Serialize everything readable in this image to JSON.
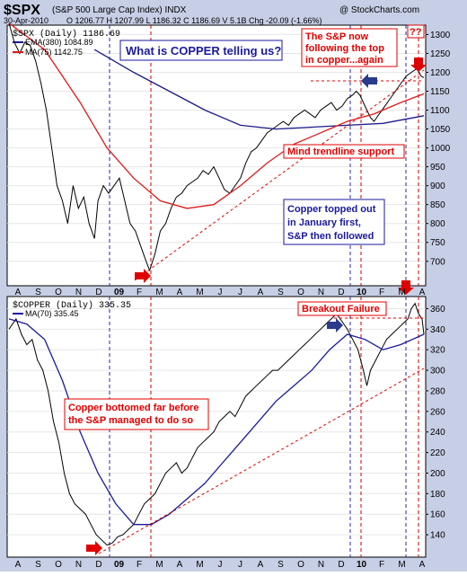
{
  "header": {
    "symbol": "$SPX",
    "name": "(S&P 500 Large Cap Index) INDX",
    "watermark": "@ StockCharts.com",
    "date": "30-Apr-2010",
    "quote": "O 1206.77  H 1207.99  L 1186.32  C 1186.69  V 5.1B  Chg -20.09 (-1.66%)"
  },
  "colors": {
    "background": "#c7cfe6",
    "panel": "#ffffff",
    "price": "#000000",
    "ema": "#1a1a8c",
    "ma_red": "#e01a1a",
    "ma_blue": "#1a1a9c",
    "annotation_red": "#e00000",
    "annotation_blue": "#1a1a9c",
    "arrow_blue": "#2a3a8c",
    "arrow_red": "#e00000",
    "vline_blue": "#2a2a9c",
    "vline_red": "#cc0000"
  },
  "panels": {
    "top": {
      "legend": {
        "series": "$SPX (Daily) 1186.69",
        "ema": "EMA(380) 1084.89",
        "ma": "MA(75) 1142.75"
      },
      "annotations": {
        "question": "What is COPPER telling us?",
        "sp_follow": "The S&P now\nfollowing the top\nin copper...again",
        "trendline": "Mind trendline support",
        "copper_top": "Copper topped out\nin January first,\nS&P then followed",
        "qq": "??"
      },
      "y_ticks": [
        "1300",
        "1250",
        "1200",
        "1150",
        "1100",
        "1050",
        "1000",
        "950",
        "900",
        "850",
        "800",
        "750",
        "700"
      ]
    },
    "bottom": {
      "legend": {
        "series": "$COPPER (Daily) 335.35",
        "ma": "MA(70) 335.45"
      },
      "annotations": {
        "breakout": "Breakout Failure",
        "bottomed": "Copper bottomed far before\nthe S&P managed to do so"
      },
      "y_ticks": [
        "360",
        "340",
        "320",
        "300",
        "280",
        "260",
        "240",
        "220",
        "200",
        "180",
        "160",
        "140"
      ]
    },
    "x_months": [
      "A",
      "S",
      "O",
      "N",
      "D",
      "09",
      "F",
      "M",
      "A",
      "M",
      "J",
      "J",
      "A",
      "S",
      "O",
      "N",
      "D",
      "10",
      "F",
      "M",
      "A"
    ]
  },
  "chart_data": [
    {
      "type": "line",
      "title": "$SPX (S&P 500 Large Cap Index) INDX",
      "ylim": [
        640,
        1320
      ],
      "series": [
        {
          "name": "$SPX (Daily)",
          "last": 1186.69,
          "points": [
            [
              0,
              1330
            ],
            [
              6,
              1280
            ],
            [
              12,
              1250
            ],
            [
              18,
              1280
            ],
            [
              24,
              1270
            ],
            [
              30,
              1230
            ],
            [
              36,
              1170
            ],
            [
              42,
              1100
            ],
            [
              48,
              1000
            ],
            [
              54,
              900
            ],
            [
              60,
              860
            ],
            [
              66,
              800
            ],
            [
              72,
              900
            ],
            [
              78,
              840
            ],
            [
              84,
              870
            ],
            [
              90,
              800
            ],
            [
              96,
              760
            ],
            [
              100,
              860
            ],
            [
              106,
              900
            ],
            [
              112,
              880
            ],
            [
              118,
              900
            ],
            [
              124,
              920
            ],
            [
              130,
              860
            ],
            [
              136,
              800
            ],
            [
              142,
              780
            ],
            [
              148,
              740
            ],
            [
              154,
              700
            ],
            [
              158,
              676
            ],
            [
              164,
              720
            ],
            [
              170,
              780
            ],
            [
              176,
              800
            ],
            [
              182,
              840
            ],
            [
              188,
              870
            ],
            [
              194,
              880
            ],
            [
              200,
              900
            ],
            [
              206,
              910
            ],
            [
              212,
              920
            ],
            [
              218,
              940
            ],
            [
              224,
              930
            ],
            [
              230,
              950
            ],
            [
              236,
              920
            ],
            [
              242,
              890
            ],
            [
              248,
              880
            ],
            [
              254,
              900
            ],
            [
              260,
              920
            ],
            [
              266,
              960
            ],
            [
              272,
              990
            ],
            [
              278,
              1000
            ],
            [
              284,
              1020
            ],
            [
              290,
              1040
            ],
            [
              296,
              1050
            ],
            [
              302,
              1060
            ],
            [
              308,
              1070
            ],
            [
              314,
              1060
            ],
            [
              320,
              1080
            ],
            [
              326,
              1090
            ],
            [
              332,
              1100
            ],
            [
              338,
              1090
            ],
            [
              344,
              1080
            ],
            [
              350,
              1100
            ],
            [
              356,
              1110
            ],
            [
              362,
              1120
            ],
            [
              368,
              1100
            ],
            [
              374,
              1110
            ],
            [
              380,
              1130
            ],
            [
              386,
              1140
            ],
            [
              390,
              1150
            ],
            [
              394,
              1140
            ],
            [
              398,
              1120
            ],
            [
              402,
              1100
            ],
            [
              406,
              1080
            ],
            [
              410,
              1070
            ],
            [
              416,
              1090
            ],
            [
              422,
              1110
            ],
            [
              428,
              1130
            ],
            [
              434,
              1150
            ],
            [
              440,
              1170
            ],
            [
              446,
              1190
            ],
            [
              452,
              1200
            ],
            [
              458,
              1210
            ],
            [
              463,
              1190
            ],
            [
              466,
              1186
            ]
          ]
        },
        {
          "name": "EMA(380)",
          "last": 1084.89,
          "points": [
            [
              96,
              1260
            ],
            [
              140,
              1200
            ],
            [
              180,
              1150
            ],
            [
              220,
              1100
            ],
            [
              260,
              1060
            ],
            [
              300,
              1050
            ],
            [
              340,
              1055
            ],
            [
              380,
              1060
            ],
            [
              420,
              1065
            ],
            [
              466,
              1085
            ]
          ]
        },
        {
          "name": "MA(75)",
          "last": 1142.75,
          "points": [
            [
              0,
              1330
            ],
            [
              40,
              1260
            ],
            [
              80,
              1120
            ],
            [
              110,
              1000
            ],
            [
              140,
              920
            ],
            [
              170,
              860
            ],
            [
              200,
              840
            ],
            [
              230,
              850
            ],
            [
              260,
              900
            ],
            [
              290,
              960
            ],
            [
              320,
              1010
            ],
            [
              350,
              1040
            ],
            [
              380,
              1070
            ],
            [
              410,
              1090
            ],
            [
              440,
              1120
            ],
            [
              466,
              1143
            ]
          ]
        }
      ]
    },
    {
      "type": "line",
      "title": "$COPPER (Daily)",
      "ylim": [
        120,
        370
      ],
      "series": [
        {
          "name": "$COPPER (Daily)",
          "last": 335.35,
          "points": [
            [
              0,
              340
            ],
            [
              8,
              350
            ],
            [
              14,
              335
            ],
            [
              20,
              325
            ],
            [
              26,
              330
            ],
            [
              32,
              310
            ],
            [
              38,
              300
            ],
            [
              44,
              280
            ],
            [
              50,
              250
            ],
            [
              56,
              230
            ],
            [
              62,
              200
            ],
            [
              68,
              180
            ],
            [
              74,
              170
            ],
            [
              80,
              165
            ],
            [
              86,
              160
            ],
            [
              92,
              150
            ],
            [
              98,
              140
            ],
            [
              104,
              135
            ],
            [
              110,
              130
            ],
            [
              116,
              132
            ],
            [
              122,
              138
            ],
            [
              128,
              140
            ],
            [
              134,
              145
            ],
            [
              140,
              150
            ],
            [
              146,
              160
            ],
            [
              152,
              170
            ],
            [
              158,
              175
            ],
            [
              164,
              180
            ],
            [
              170,
              190
            ],
            [
              176,
              200
            ],
            [
              182,
              205
            ],
            [
              188,
              210
            ],
            [
              194,
              200
            ],
            [
              200,
              205
            ],
            [
              206,
              215
            ],
            [
              212,
              225
            ],
            [
              218,
              230
            ],
            [
              224,
              235
            ],
            [
              230,
              240
            ],
            [
              236,
              250
            ],
            [
              242,
              255
            ],
            [
              248,
              260
            ],
            [
              254,
              255
            ],
            [
              260,
              265
            ],
            [
              266,
              275
            ],
            [
              272,
              280
            ],
            [
              278,
              285
            ],
            [
              284,
              290
            ],
            [
              290,
              295
            ],
            [
              296,
              300
            ],
            [
              302,
              300
            ],
            [
              308,
              305
            ],
            [
              314,
              310
            ],
            [
              320,
              315
            ],
            [
              326,
              320
            ],
            [
              332,
              325
            ],
            [
              338,
              330
            ],
            [
              344,
              335
            ],
            [
              350,
              340
            ],
            [
              356,
              345
            ],
            [
              362,
              350
            ],
            [
              368,
              355
            ],
            [
              372,
              350
            ],
            [
              376,
              345
            ],
            [
              380,
              340
            ],
            [
              386,
              330
            ],
            [
              392,
              320
            ],
            [
              398,
              300
            ],
            [
              402,
              285
            ],
            [
              406,
              300
            ],
            [
              412,
              310
            ],
            [
              418,
              320
            ],
            [
              424,
              330
            ],
            [
              430,
              335
            ],
            [
              436,
              340
            ],
            [
              442,
              345
            ],
            [
              448,
              350
            ],
            [
              452,
              360
            ],
            [
              456,
              365
            ],
            [
              460,
              355
            ],
            [
              464,
              350
            ],
            [
              466,
              335
            ]
          ]
        },
        {
          "name": "MA(70)",
          "last": 335.45,
          "points": [
            [
              0,
              350
            ],
            [
              20,
              345
            ],
            [
              40,
              330
            ],
            [
              60,
              290
            ],
            [
              80,
              240
            ],
            [
              100,
              200
            ],
            [
              120,
              170
            ],
            [
              140,
              150
            ],
            [
              160,
              150
            ],
            [
              180,
              160
            ],
            [
              200,
              175
            ],
            [
              220,
              190
            ],
            [
              240,
              210
            ],
            [
              260,
              230
            ],
            [
              280,
              250
            ],
            [
              300,
              270
            ],
            [
              320,
              285
            ],
            [
              340,
              300
            ],
            [
              360,
              320
            ],
            [
              380,
              335
            ],
            [
              400,
              330
            ],
            [
              420,
              320
            ],
            [
              440,
              325
            ],
            [
              466,
              335
            ]
          ]
        }
      ]
    }
  ]
}
